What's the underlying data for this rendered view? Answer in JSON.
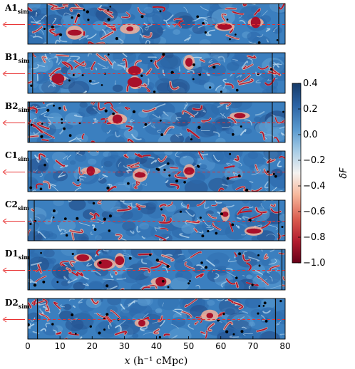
{
  "figure": {
    "panels": [
      {
        "main": "A1",
        "sub": "sim"
      },
      {
        "main": "B1",
        "sub": "sim"
      },
      {
        "main": "B2",
        "sub": "sim"
      },
      {
        "main": "C1",
        "sub": "sim"
      },
      {
        "main": "C2",
        "sub": "sim"
      },
      {
        "main": "D1",
        "sub": "sim"
      },
      {
        "main": "D2",
        "sub": "sim"
      }
    ],
    "x_axis": {
      "label_italic": "x",
      "label_rest": " (h⁻¹ cMpc)",
      "ticks": [
        "0",
        "10",
        "20",
        "30",
        "40",
        "50",
        "60",
        "70",
        "80"
      ],
      "range": [
        0,
        80
      ]
    },
    "colorbar": {
      "label": "δF",
      "ticks": [
        "0.4",
        "0.2",
        "0.0",
        "−0.2",
        "−0.4",
        "−0.6",
        "−0.8",
        "−1.0"
      ],
      "range": [
        -1.0,
        0.4
      ],
      "colors": {
        "top": "#1a3f6e",
        "mid_blue": "#4a8cc4",
        "light_blue": "#9cc6e2",
        "white": "#f7f3f0",
        "pink": "#f4a78b",
        "red": "#c8303a",
        "bottom": "#6b0019"
      }
    },
    "colors": {
      "field_base": "#3b7fbf",
      "arrow": "#e83030",
      "dashed_line": "#e83030",
      "galaxy_marker": "#000000"
    }
  },
  "chart_data": {
    "type": "heatmap",
    "xlabel": "x (h⁻¹ cMpc)",
    "xlim": [
      0,
      80
    ],
    "colorbar_label": "δF",
    "colorbar_range": [
      -1.0,
      0.4
    ],
    "panels": [
      "A1sim",
      "B1sim",
      "B2sim",
      "C1sim",
      "C2sim",
      "D1sim",
      "D2sim"
    ]
  }
}
